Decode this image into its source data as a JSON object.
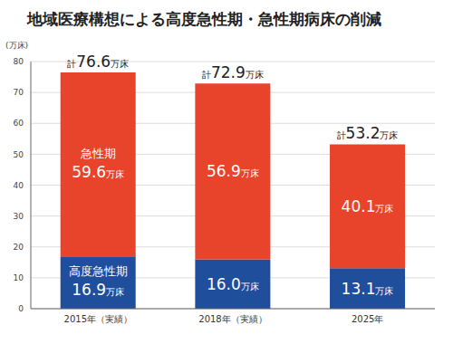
{
  "chart_data": {
    "type": "bar",
    "title": "地域医療構想による高度急性期・急性期病床の削減",
    "y_label": "(万床)",
    "categories": [
      "2015年（実績）",
      "2018年（実績）",
      "2025年"
    ],
    "series": [
      {
        "name": "高度急性期",
        "color": "#1f4e9c",
        "values": [
          16.9,
          16.0,
          13.1
        ],
        "value_labels": [
          "16.9万床",
          "16.0万床",
          "13.1万床"
        ]
      },
      {
        "name": "急性期",
        "color": "#e8432b",
        "values": [
          59.6,
          56.9,
          40.1
        ],
        "value_labels": [
          "59.6万床",
          "56.9万床",
          "40.1万床"
        ]
      }
    ],
    "totals": [
      76.6,
      72.9,
      53.2
    ],
    "total_labels": [
      "計76.6万床",
      "計72.9万床",
      "計53.2万床"
    ],
    "ylim": [
      0,
      80
    ],
    "yticks": [
      0,
      10,
      20,
      30,
      40,
      50,
      60,
      70,
      80
    ],
    "grid": true,
    "stacked": true,
    "data_labels": true
  }
}
